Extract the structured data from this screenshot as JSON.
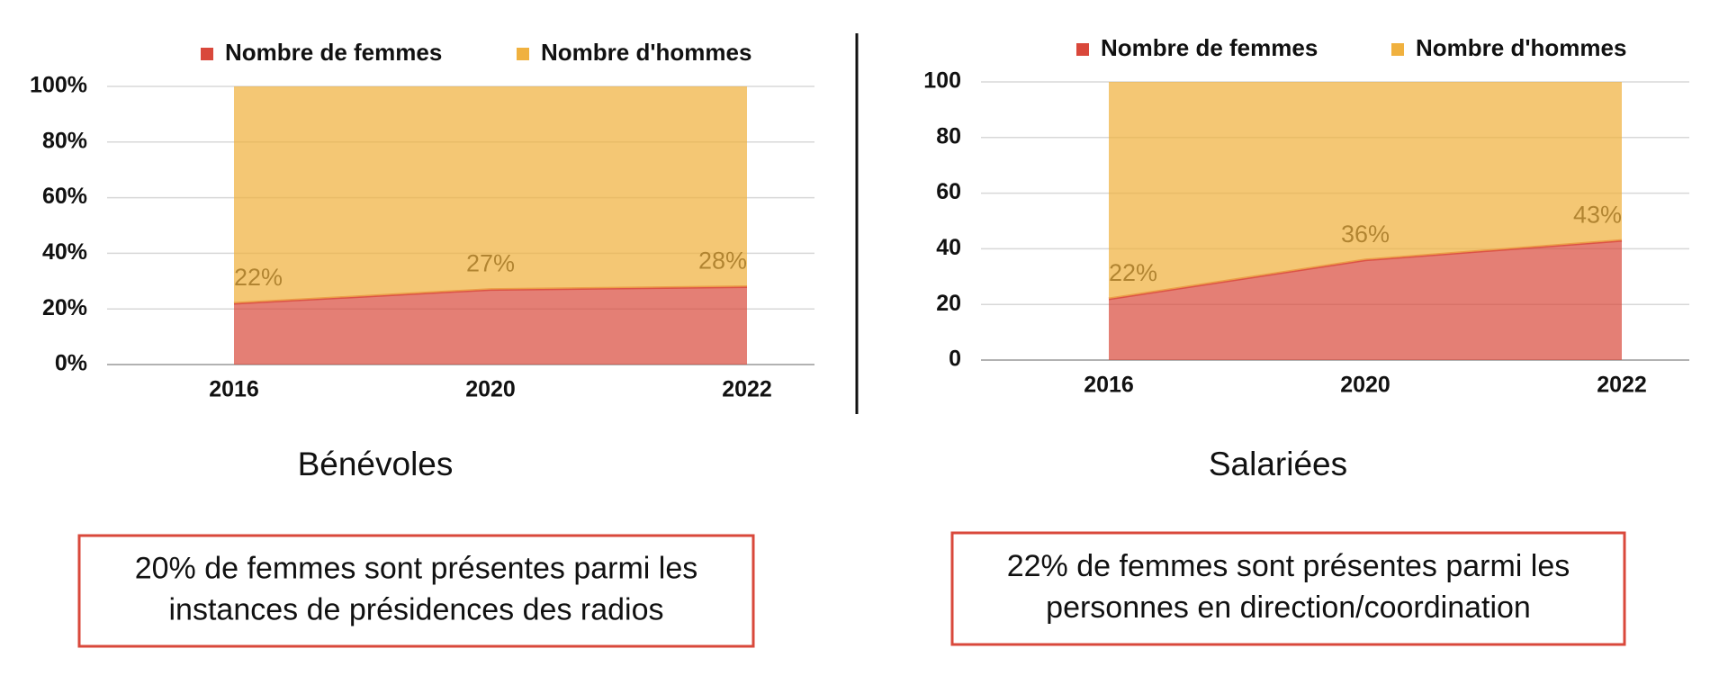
{
  "chart_data": [
    {
      "type": "stacked-area",
      "title": "Bénévoles",
      "annotation": [
        "20% de femmes sont présentes parmi les",
        "instances de présidences des radios"
      ],
      "categories": [
        "2016",
        "2020",
        "2022"
      ],
      "series": [
        {
          "name": "Nombre de femmes",
          "color": "#d9483b",
          "values": [
            22,
            27,
            28
          ],
          "value_labels": [
            "22%",
            "27%",
            "28%"
          ]
        },
        {
          "name": "Nombre d'hommes",
          "color": "#f0b13f",
          "values": [
            78,
            73,
            72
          ]
        }
      ],
      "ylim": [
        0,
        100
      ],
      "yticks": [
        {
          "value": 0,
          "label": "0%"
        },
        {
          "value": 20,
          "label": "20%"
        },
        {
          "value": 40,
          "label": "40%"
        },
        {
          "value": 60,
          "label": "60%"
        },
        {
          "value": 80,
          "label": "80%"
        },
        {
          "value": 100,
          "label": "100%"
        }
      ],
      "grid": true,
      "legend": "top"
    },
    {
      "type": "stacked-area",
      "title": "Salariées",
      "annotation": [
        "22% de femmes sont présentes parmi les",
        "personnes en direction/coordination"
      ],
      "categories": [
        "2016",
        "2020",
        "2022"
      ],
      "series": [
        {
          "name": "Nombre de femmes",
          "color": "#d9483b",
          "values": [
            22,
            36,
            43
          ],
          "value_labels": [
            "22%",
            "36%",
            "43%"
          ]
        },
        {
          "name": "Nombre d'hommes",
          "color": "#f0b13f",
          "values": [
            78,
            64,
            57
          ]
        }
      ],
      "ylim": [
        0,
        100
      ],
      "yticks": [
        0,
        20,
        40,
        60,
        80,
        100
      ],
      "grid": true,
      "legend": "top"
    }
  ]
}
